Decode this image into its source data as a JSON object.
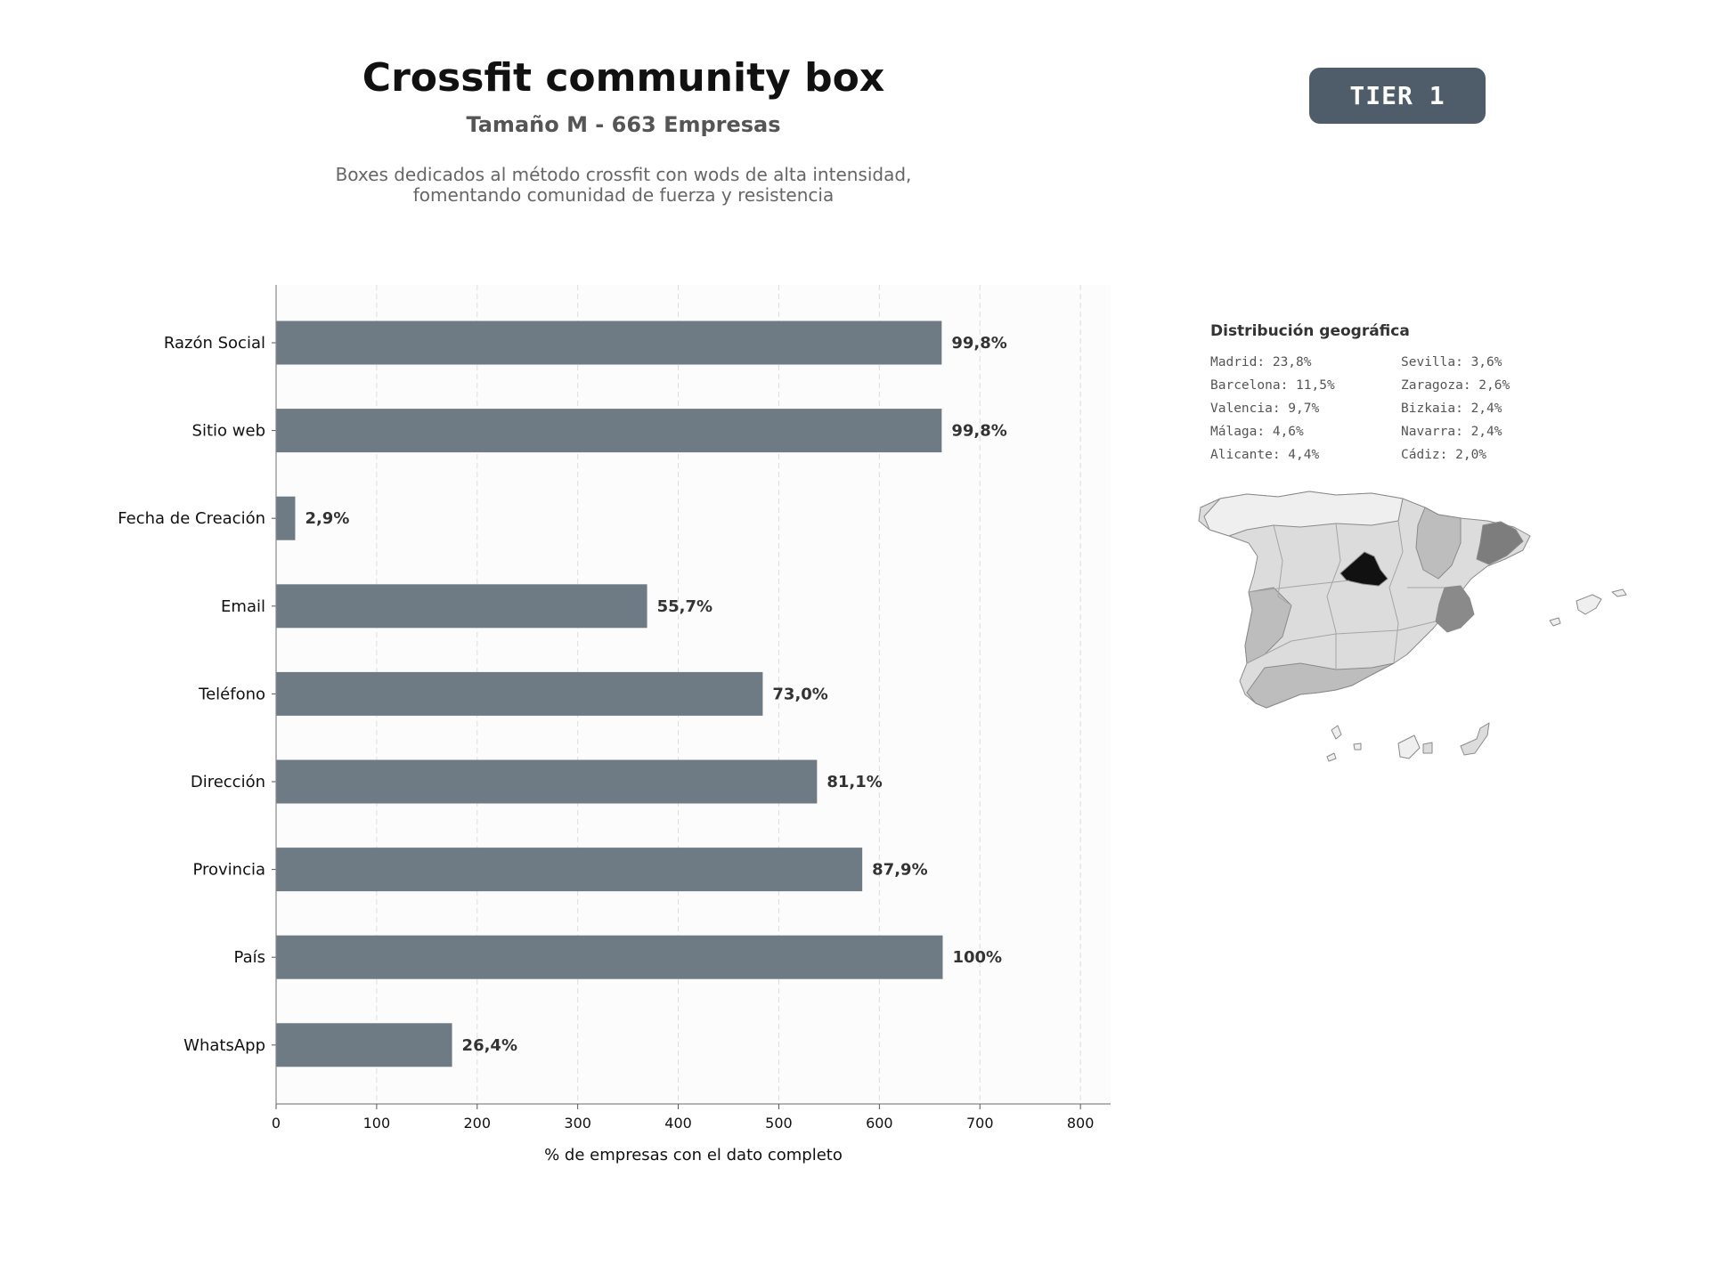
{
  "header": {
    "title": "Crossfit community box",
    "subtitle": "Tamaño M - 663 Empresas",
    "description_lines": [
      "Boxes dedicados al método crossfit con wods de alta intensidad,",
      "fomentando comunidad de fuerza y resistencia"
    ],
    "tier": "TIER 1"
  },
  "chart_data": {
    "type": "bar",
    "orientation": "horizontal",
    "categories": [
      "Razón Social",
      "Sitio web",
      "Fecha de Creación",
      "Email",
      "Teléfono",
      "Dirección",
      "Provincia",
      "País",
      "WhatsApp"
    ],
    "values": [
      662,
      662,
      19,
      369,
      484,
      538,
      583,
      663,
      175
    ],
    "value_labels": [
      "99,8%",
      "99,8%",
      "2,9%",
      "55,7%",
      "73,0%",
      "81,1%",
      "87,9%",
      "100%",
      "26,4%"
    ],
    "xlabel": "% de empresas con el dato completo",
    "ylabel": "",
    "xlim": [
      0,
      830
    ],
    "xticks": [
      0,
      100,
      200,
      300,
      400,
      500,
      600,
      700,
      800
    ],
    "grid": "vertical dashed",
    "colors": {
      "bar": "#6e7a84",
      "label": "#333333",
      "plot_bg": "#fcfcfc"
    }
  },
  "geo": {
    "title": "Distribución geográfica",
    "items": [
      "Madrid: 23,8%",
      "Sevilla: 3,6%",
      "Barcelona: 11,5%",
      "Zaragoza: 2,6%",
      "Valencia: 9,7%",
      "Bizkaia: 2,4%",
      "Málaga: 4,6%",
      "Navarra: 2,4%",
      "Alicante: 4,4%",
      "Cádiz: 2,0%"
    ],
    "map_colors": {
      "madrid": "#111111",
      "barcelona": "#7d7d7d",
      "valencia": "#8a8a8a",
      "medium": "#bdbdbd",
      "light": "#dcdcdc",
      "lightest": "#efefef"
    }
  }
}
